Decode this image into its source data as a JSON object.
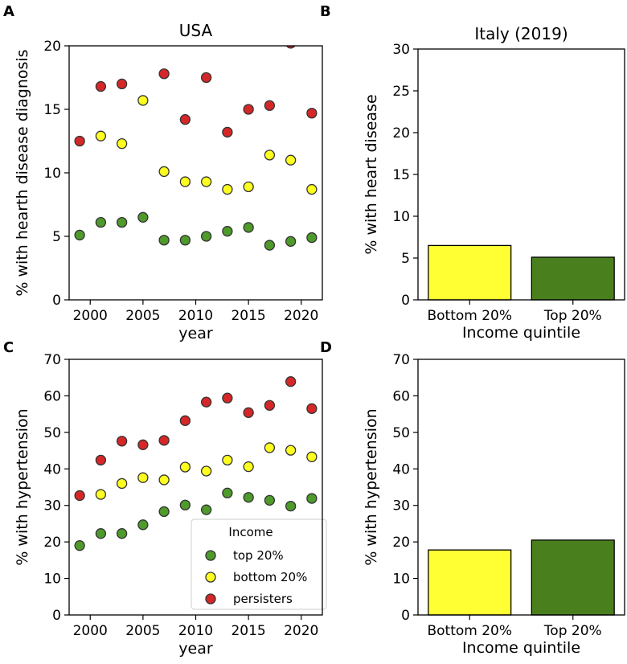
{
  "chart_data": [
    {
      "panel": "A",
      "type": "scatter",
      "title": "USA",
      "xlabel": "year",
      "ylabel": "% with hearth disease diagnosis",
      "xlim": [
        1998,
        2022
      ],
      "ylim": [
        0,
        20
      ],
      "xticks": [
        2000,
        2005,
        2010,
        2015,
        2020
      ],
      "yticks": [
        0,
        5,
        10,
        15,
        20
      ],
      "x": [
        1999,
        2001,
        2003,
        2005,
        2007,
        2009,
        2011,
        2013,
        2015,
        2017,
        2019,
        2021
      ],
      "series": [
        {
          "name": "top 20%",
          "color": "#4e9a2a",
          "values": [
            5.1,
            6.1,
            6.1,
            6.5,
            4.7,
            4.7,
            5.0,
            5.4,
            5.7,
            4.3,
            4.6,
            4.9
          ]
        },
        {
          "name": "bottom 20%",
          "color": "#ffff1f",
          "values": [
            null,
            12.9,
            12.3,
            15.7,
            10.1,
            9.3,
            9.3,
            8.7,
            8.9,
            11.4,
            11.0,
            8.7
          ]
        },
        {
          "name": "persisters",
          "color": "#d62728",
          "values": [
            12.5,
            16.8,
            17.0,
            null,
            17.8,
            14.2,
            17.5,
            13.2,
            15.0,
            15.3,
            20.2,
            14.7
          ]
        }
      ]
    },
    {
      "panel": "B",
      "type": "bar",
      "title": "Italy (2019)",
      "xlabel": "Income quintile",
      "ylabel": "% with heart disease",
      "ylim": [
        0,
        30
      ],
      "yticks": [
        0,
        5,
        10,
        15,
        20,
        25,
        30
      ],
      "categories": [
        "Bottom 20%",
        "Top 20%"
      ],
      "values": [
        6.5,
        5.1
      ],
      "colors": [
        "#ffff33",
        "#4a7f1e"
      ]
    },
    {
      "panel": "C",
      "type": "scatter",
      "title": "",
      "xlabel": "year",
      "ylabel": "% with hypertension",
      "xlim": [
        1998,
        2022
      ],
      "ylim": [
        0,
        70
      ],
      "xticks": [
        2000,
        2005,
        2010,
        2015,
        2020
      ],
      "yticks": [
        0,
        10,
        20,
        30,
        40,
        50,
        60,
        70
      ],
      "x": [
        1999,
        2001,
        2003,
        2005,
        2007,
        2009,
        2011,
        2013,
        2015,
        2017,
        2019,
        2021
      ],
      "series": [
        {
          "name": "top 20%",
          "color": "#4e9a2a",
          "values": [
            19.0,
            22.3,
            22.3,
            24.7,
            28.3,
            30.1,
            28.8,
            33.4,
            32.2,
            31.4,
            29.8,
            31.9
          ]
        },
        {
          "name": "bottom 20%",
          "color": "#ffff1f",
          "values": [
            null,
            33.0,
            36.0,
            37.6,
            37.0,
            40.5,
            39.4,
            42.4,
            40.6,
            45.8,
            45.1,
            43.3
          ]
        },
        {
          "name": "persisters",
          "color": "#d62728",
          "values": [
            32.7,
            42.4,
            47.6,
            46.6,
            47.8,
            53.2,
            58.3,
            59.4,
            55.4,
            57.4,
            63.9,
            56.5
          ]
        }
      ],
      "legend": {
        "title": "Income",
        "position": "lower-right",
        "entries": [
          "top 20%",
          "bottom 20%",
          "persisters"
        ]
      }
    },
    {
      "panel": "D",
      "type": "bar",
      "title": "",
      "xlabel": "Income quintile",
      "ylabel": "% with hypertension",
      "ylim": [
        0,
        70
      ],
      "yticks": [
        0,
        10,
        20,
        30,
        40,
        50,
        60,
        70
      ],
      "categories": [
        "Bottom 20%",
        "Top 20%"
      ],
      "values": [
        17.8,
        20.5
      ],
      "colors": [
        "#ffff33",
        "#4a7f1e"
      ]
    }
  ]
}
